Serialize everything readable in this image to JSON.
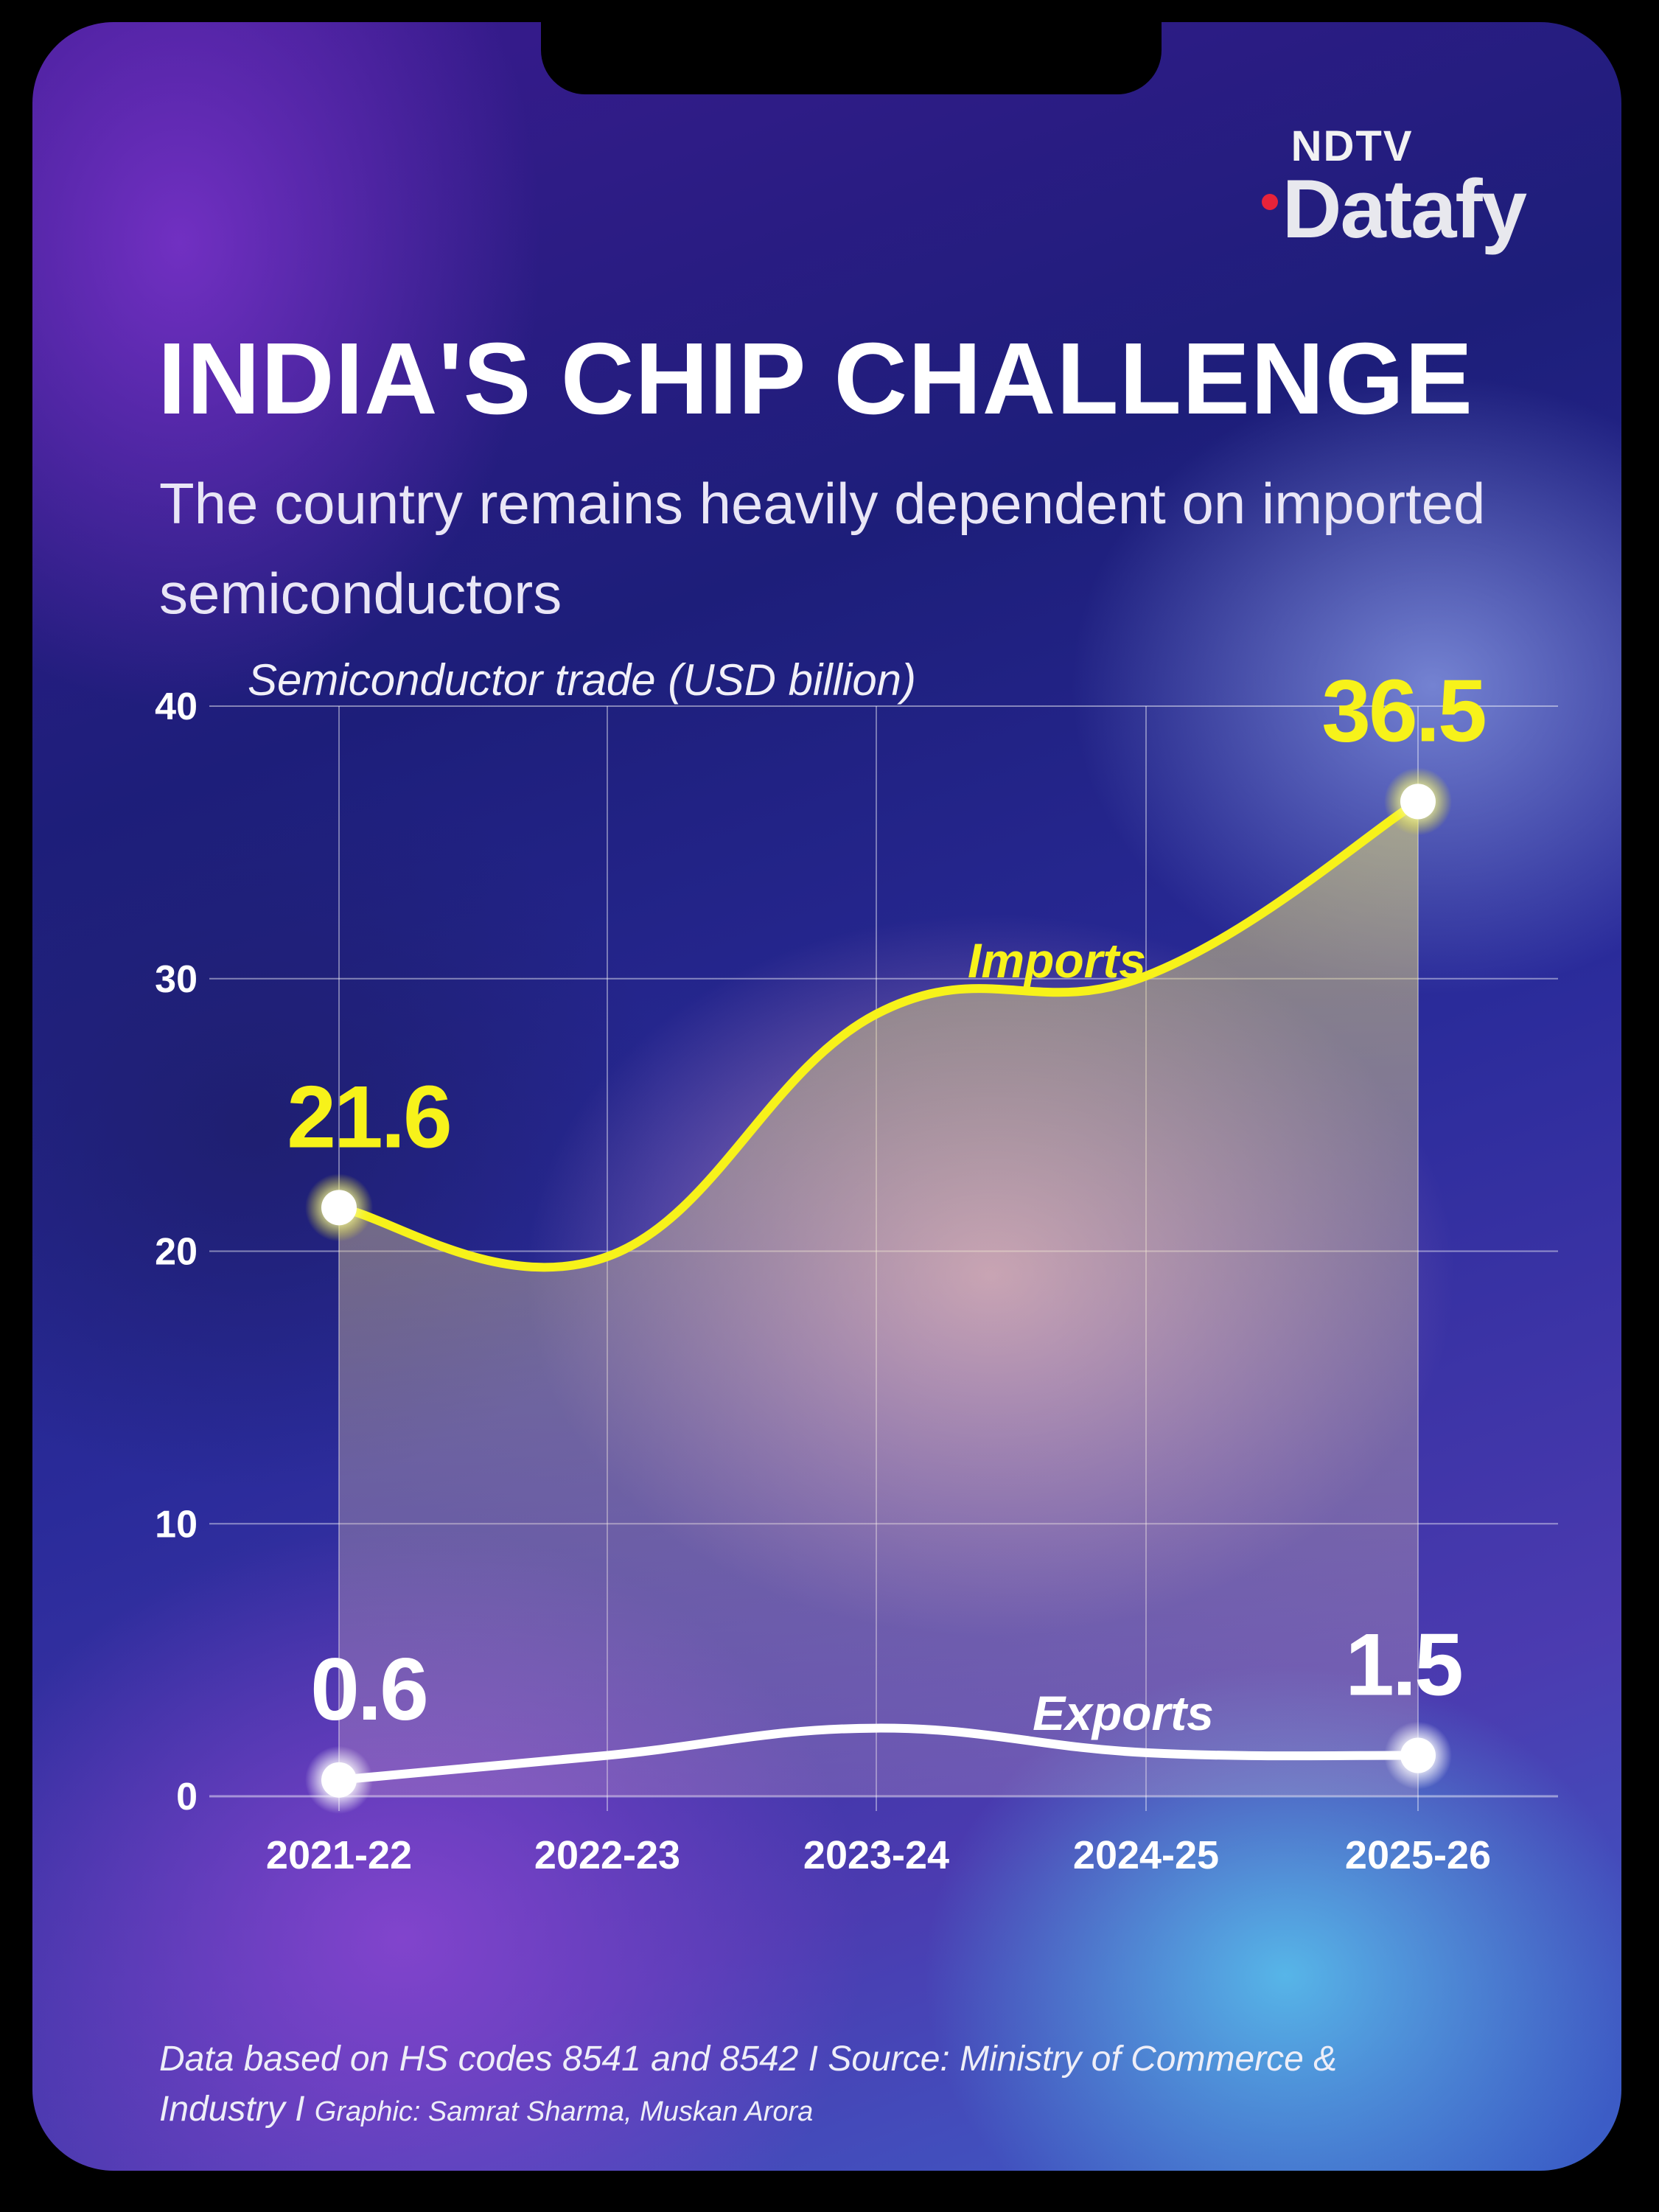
{
  "brand": {
    "top": "NDTV",
    "bottom": "Datafy"
  },
  "title": "INDIA'S CHIP CHALLENGE",
  "subtitle": "The country remains heavily dependent on imported semiconductors",
  "colors": {
    "imports": "#f7f21a",
    "exports": "#ffffff",
    "brand_dot": "#e8233a"
  },
  "chart_data": {
    "type": "line",
    "title": "Semiconductor trade (USD billion)",
    "categories": [
      "2021-22",
      "2022-23",
      "2023-24",
      "2024-25",
      "2025-26"
    ],
    "ylim": [
      0,
      40
    ],
    "yticks": [
      0,
      10,
      20,
      30,
      40
    ],
    "grid": true,
    "series": [
      {
        "name": "Imports",
        "values": [
          21.6,
          19.8,
          28.7,
          30.1,
          36.5
        ],
        "color": "#f7f21a",
        "labels": [
          "21.6",
          "",
          "",
          "",
          "36.5"
        ]
      },
      {
        "name": "Exports",
        "values": [
          0.6,
          1.5,
          2.5,
          1.6,
          1.5
        ],
        "color": "#ffffff",
        "labels": [
          "0.6",
          "",
          "",
          "",
          "1.5"
        ]
      }
    ]
  },
  "footer": {
    "source": "Data based on HS codes 8541 and 8542 I Source: Ministry of Commerce & Industry I",
    "credit": "Graphic: Samrat Sharma, Muskan Arora"
  }
}
